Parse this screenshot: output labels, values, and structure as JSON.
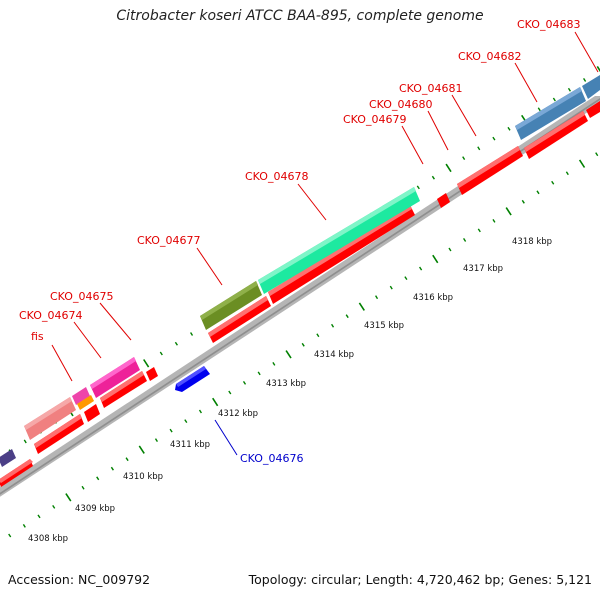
{
  "title": "Citrobacter koseri ATCC BAA-895, complete genome",
  "footer": {
    "accession": "Accession: NC_009792",
    "summary": "Topology: circular; Length: 4,720,462 bp; Genes: 5,121"
  },
  "colors": {
    "backbone": "#a6a6a6",
    "tick": "#008000",
    "cds_forward_label": "#e00000",
    "cds_reverse_label": "#0000cc"
  },
  "scale": {
    "unit": "kbp",
    "labels": [
      {
        "text": "4308 kbp",
        "kbp": 4308
      },
      {
        "text": "4309 kbp",
        "kbp": 4309
      },
      {
        "text": "4310 kbp",
        "kbp": 4310
      },
      {
        "text": "4311 kbp",
        "kbp": 4311
      },
      {
        "text": "4312 kbp",
        "kbp": 4312
      },
      {
        "text": "4313 kbp",
        "kbp": 4313
      },
      {
        "text": "4314 kbp",
        "kbp": 4314
      },
      {
        "text": "4315 kbp",
        "kbp": 4315
      },
      {
        "text": "4316 kbp",
        "kbp": 4316
      },
      {
        "text": "4317 kbp",
        "kbp": 4317
      },
      {
        "text": "4318 kbp",
        "kbp": 4318
      }
    ]
  },
  "genes": [
    {
      "label": "fis",
      "color": "#e00000"
    },
    {
      "label": "CKO_04674",
      "color": "#e00000"
    },
    {
      "label": "CKO_04675",
      "color": "#e00000"
    },
    {
      "label": "CKO_04676",
      "color": "#0000cc"
    },
    {
      "label": "CKO_04677",
      "color": "#e00000"
    },
    {
      "label": "CKO_04678",
      "color": "#e00000"
    },
    {
      "label": "CKO_04679",
      "color": "#e00000"
    },
    {
      "label": "CKO_04680",
      "color": "#e00000"
    },
    {
      "label": "CKO_04681",
      "color": "#e00000"
    },
    {
      "label": "CKO_04682",
      "color": "#e00000"
    },
    {
      "label": "CKO_04683",
      "color": "#e00000"
    }
  ]
}
